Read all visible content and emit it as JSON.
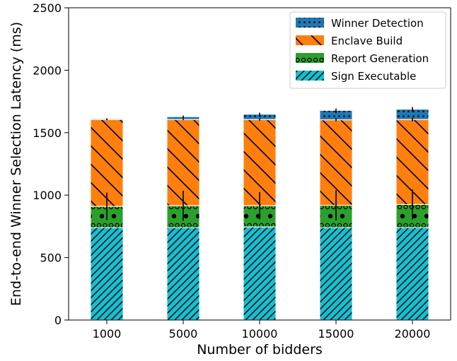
{
  "chart_data": {
    "type": "bar",
    "stacked": true,
    "title": "",
    "xlabel": "Number of bidders",
    "ylabel": "End-to-end Winner Selection Latency (ms)",
    "categories": [
      "1000",
      "5000",
      "10000",
      "15000",
      "20000"
    ],
    "ylim": [
      0,
      2500
    ],
    "yticks": [
      0,
      500,
      1000,
      1500,
      2000,
      2500
    ],
    "grid": false,
    "legend_position": "top-right",
    "series": [
      {
        "name": "Sign Executable",
        "color": "#17becf",
        "hatch": "diagonal-stripes",
        "values": [
          740,
          740,
          745,
          740,
          740
        ],
        "error": [
          0,
          0,
          0,
          0,
          0
        ]
      },
      {
        "name": "Report Generation",
        "color": "#2ca02c",
        "hatch": "circles",
        "values": [
          170,
          175,
          170,
          178,
          185
        ],
        "error": [
          110,
          120,
          110,
          120,
          120
        ]
      },
      {
        "name": "Enclave Build",
        "color": "#ff7f0e",
        "hatch": "back-diagonal-stripes",
        "values": [
          695,
          690,
          690,
          685,
          680
        ],
        "error": [
          5,
          5,
          10,
          12,
          15
        ]
      },
      {
        "name": "Winner Detection",
        "color": "#1f77b4",
        "hatch": "dots",
        "values": [
          5,
          20,
          40,
          72,
          80
        ],
        "error": [
          5,
          12,
          15,
          18,
          20
        ]
      }
    ],
    "legend_order": [
      "Winner Detection",
      "Enclave Build",
      "Report Generation",
      "Sign Executable"
    ]
  }
}
